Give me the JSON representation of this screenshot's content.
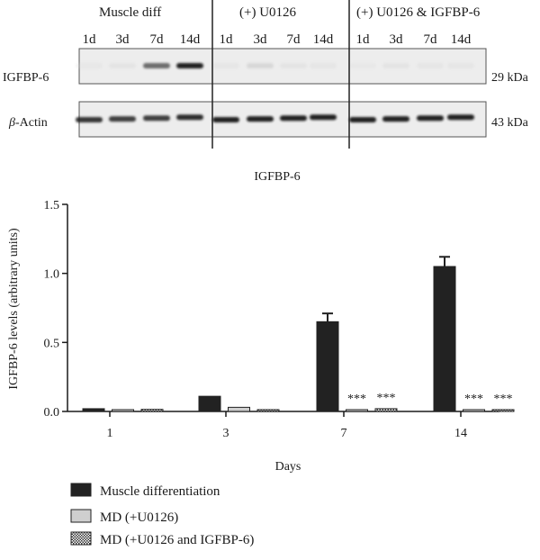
{
  "western_blot": {
    "group_labels": [
      "Muscle diff",
      "(+) U0126",
      "(+) U0126 & IGFBP-6"
    ],
    "lane_labels": [
      "1d",
      "3d",
      "7d",
      "14d",
      "1d",
      "3d",
      "7d",
      "14d",
      "1d",
      "3d",
      "7d",
      "14d"
    ],
    "rows": [
      {
        "protein": "IGFBP-6",
        "size": "29 kDa",
        "intensity": [
          0.1,
          0.15,
          0.75,
          0.95,
          0.12,
          0.3,
          0.15,
          0.12,
          0.08,
          0.15,
          0.12,
          0.12
        ]
      },
      {
        "protein_prefix": "β",
        "protein": "-Actin",
        "size": "43 kDa",
        "intensity": [
          0.9,
          0.88,
          0.88,
          0.92,
          0.95,
          0.95,
          0.95,
          0.95,
          0.95,
          0.95,
          0.95,
          0.95
        ]
      }
    ]
  },
  "chart_data": {
    "type": "bar",
    "title": "IGFBP-6",
    "xlabel": "Days",
    "ylabel": "IGFBP-6 levels (arbitrary units)",
    "categories": [
      "1",
      "3",
      "7",
      "14"
    ],
    "ylim": [
      0,
      1.5
    ],
    "yticks": [
      "0.0",
      "0.5",
      "1.0",
      "1.5"
    ],
    "grid": false,
    "legend_position": "bottom-left",
    "series": [
      {
        "name": "Muscle differentiation",
        "values": [
          0.02,
          0.11,
          0.65,
          1.05
        ],
        "errors": [
          0.005,
          0.01,
          0.06,
          0.07
        ],
        "fill": "solid",
        "color": "#222222",
        "annotations": [
          "",
          "",
          "",
          ""
        ]
      },
      {
        "name": "MD (+U0126)",
        "values": [
          0.01,
          0.03,
          0.01,
          0.01
        ],
        "errors": [
          0.003,
          0.008,
          0.004,
          0.003
        ],
        "fill": "light",
        "color": "#cfcfcf",
        "annotations": [
          "",
          "",
          "***",
          "***"
        ]
      },
      {
        "name": "MD (+U0126 and IGFBP-6)",
        "values": [
          0.015,
          0.01,
          0.02,
          0.01
        ],
        "errors": [
          0.005,
          0.003,
          0.005,
          0.004
        ],
        "fill": "checker",
        "color": "#444444",
        "annotations": [
          "",
          "",
          "***",
          "***"
        ]
      }
    ]
  }
}
